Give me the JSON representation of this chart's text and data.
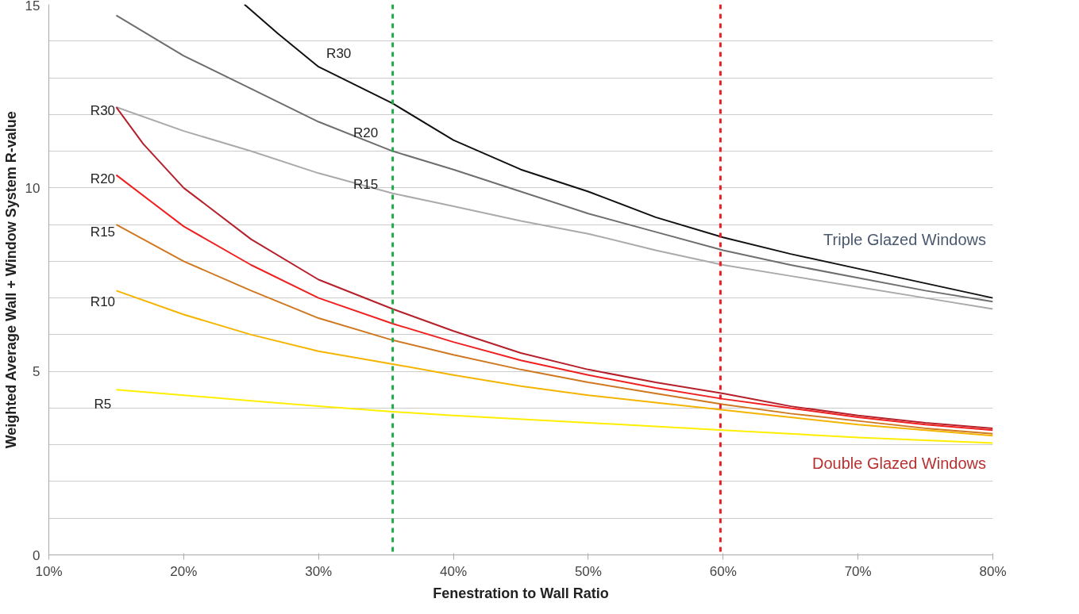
{
  "chart_data": {
    "type": "line",
    "xlabel": "Fenestration to Wall Ratio",
    "ylabel": "Weighted Average Wall + Window System R-value",
    "xlim": [
      10,
      80
    ],
    "ylim": [
      0,
      15
    ],
    "xticks": [
      {
        "value": 10,
        "label": "10%"
      },
      {
        "value": 20,
        "label": "20%"
      },
      {
        "value": 30,
        "label": "30%"
      },
      {
        "value": 40,
        "label": "40%"
      },
      {
        "value": 50,
        "label": "50%"
      },
      {
        "value": 60,
        "label": "60%"
      },
      {
        "value": 70,
        "label": "70%"
      },
      {
        "value": 80,
        "label": "80%"
      }
    ],
    "yticks": [
      0,
      {
        "value": 1,
        "label": null
      },
      {
        "value": 2,
        "label": null
      },
      {
        "value": 3,
        "label": null
      },
      {
        "value": 4,
        "label": null
      },
      5,
      {
        "value": 6,
        "label": null
      },
      {
        "value": 7,
        "label": null
      },
      {
        "value": 8,
        "label": null
      },
      {
        "value": 9,
        "label": null
      },
      10,
      {
        "value": 11,
        "label": null
      },
      {
        "value": 12,
        "label": null
      },
      {
        "value": 13,
        "label": null
      },
      {
        "value": 14,
        "label": null
      },
      15
    ],
    "grid": "y",
    "marker": "none",
    "line_style": "solid",
    "series": [
      {
        "name": "R30",
        "color": "#111111",
        "x": [
          24.5,
          27,
          30,
          35.5,
          40,
          45,
          50,
          55,
          60,
          65,
          70,
          75,
          80
        ],
        "values": [
          15,
          14.2,
          13.3,
          12.3,
          11.3,
          10.5,
          9.9,
          9.2,
          8.65,
          8.2,
          7.8,
          7.4,
          7.0
        ]
      },
      {
        "name": "R20",
        "color": "#6e6e6e",
        "x": [
          15,
          20,
          25,
          30,
          35.5,
          40,
          45,
          50,
          55,
          60,
          65,
          70,
          75,
          80
        ],
        "values": [
          14.7,
          13.6,
          12.7,
          11.8,
          11.0,
          10.5,
          9.9,
          9.3,
          8.8,
          8.3,
          7.9,
          7.55,
          7.2,
          6.9
        ]
      },
      {
        "name": "R15",
        "color": "#aaaaaa",
        "x": [
          15,
          20,
          25,
          30,
          35.5,
          40,
          45,
          50,
          55,
          60,
          65,
          70,
          75,
          80
        ],
        "values": [
          12.2,
          11.55,
          11.0,
          10.4,
          9.85,
          9.5,
          9.1,
          8.75,
          8.3,
          7.9,
          7.6,
          7.3,
          7.0,
          6.7
        ]
      },
      {
        "name": "R30",
        "color": "#b5202a",
        "x": [
          15,
          17,
          20,
          25,
          30,
          35.5,
          40,
          45,
          50,
          55,
          60,
          65,
          70,
          75,
          80
        ],
        "values": [
          12.2,
          11.2,
          10.0,
          8.6,
          7.5,
          6.7,
          6.1,
          5.5,
          5.05,
          4.7,
          4.4,
          4.05,
          3.8,
          3.6,
          3.45
        ]
      },
      {
        "name": "R20",
        "color": "#f02020",
        "x": [
          15,
          20,
          25,
          30,
          35.5,
          40,
          45,
          50,
          55,
          60,
          65,
          70,
          75,
          80
        ],
        "values": [
          10.35,
          8.95,
          7.9,
          7.0,
          6.3,
          5.8,
          5.3,
          4.9,
          4.55,
          4.25,
          4.0,
          3.75,
          3.55,
          3.4
        ]
      },
      {
        "name": "R15",
        "color": "#d07820",
        "x": [
          15,
          20,
          25,
          30,
          35.5,
          40,
          45,
          50,
          55,
          60,
          65,
          70,
          75,
          80
        ],
        "values": [
          9.0,
          8.0,
          7.2,
          6.45,
          5.85,
          5.45,
          5.05,
          4.7,
          4.4,
          4.1,
          3.85,
          3.65,
          3.45,
          3.3
        ]
      },
      {
        "name": "R10",
        "color": "#f5b400",
        "x": [
          15,
          20,
          25,
          30,
          35.5,
          40,
          45,
          50,
          55,
          60,
          65,
          70,
          75,
          80
        ],
        "values": [
          7.2,
          6.55,
          6.0,
          5.55,
          5.2,
          4.9,
          4.6,
          4.35,
          4.15,
          3.95,
          3.75,
          3.55,
          3.4,
          3.25
        ]
      },
      {
        "name": "R5",
        "color": "#ffee00",
        "x": [
          15,
          20,
          25,
          30,
          35.5,
          40,
          50,
          60,
          70,
          80
        ],
        "values": [
          4.5,
          4.35,
          4.2,
          4.05,
          3.9,
          3.8,
          3.6,
          3.4,
          3.2,
          3.05
        ]
      }
    ],
    "ref_lines": [
      {
        "axis": "x",
        "value": 35.5,
        "label": null,
        "color": "#1faa4a",
        "line_style": "dashed"
      },
      {
        "axis": "x",
        "value": 59.8,
        "label": null,
        "color": "#ee1c24",
        "line_style": "dashed"
      }
    ],
    "annotations": [
      "Triple Glazed Windows",
      "Double Glazed Windows"
    ]
  }
}
